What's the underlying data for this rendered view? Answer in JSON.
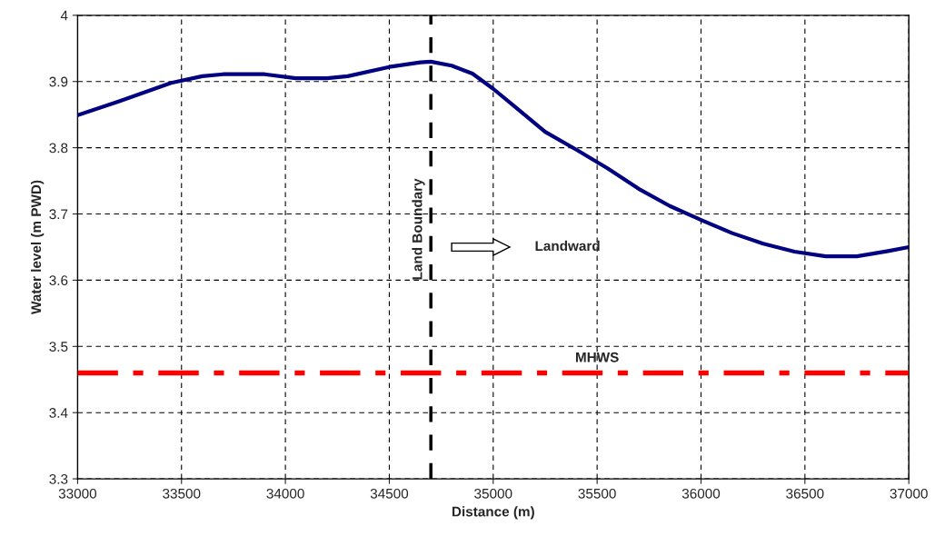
{
  "chart_data": {
    "type": "line",
    "xlabel": "Distance (m)",
    "ylabel": "Water level (m PWD)",
    "x": [
      33000,
      33200,
      33450,
      33600,
      33700,
      33900,
      34050,
      34200,
      34300,
      34500,
      34650,
      34700,
      34800,
      34900,
      35000,
      35100,
      35250,
      35400,
      35550,
      35700,
      35850,
      36000,
      36150,
      36300,
      36450,
      36600,
      36750,
      36900,
      37000
    ],
    "series": [
      {
        "color": "#000080",
        "values": [
          3.849,
          3.87,
          3.898,
          3.908,
          3.911,
          3.911,
          3.905,
          3.905,
          3.908,
          3.922,
          3.929,
          3.93,
          3.924,
          3.912,
          3.889,
          3.863,
          3.824,
          3.797,
          3.769,
          3.738,
          3.712,
          3.691,
          3.671,
          3.655,
          3.643,
          3.636,
          3.636,
          3.644,
          3.65
        ]
      }
    ],
    "xlim": [
      33000,
      37000
    ],
    "xticks": [
      33000,
      33500,
      34000,
      34500,
      35000,
      35500,
      36000,
      36500,
      37000
    ],
    "ylim": [
      3.3,
      4
    ],
    "yticks": [
      {
        "value": 3.3,
        "label": "3.3"
      },
      {
        "value": 3.4,
        "label": "3.4"
      },
      {
        "value": 3.5,
        "label": "3.5"
      },
      {
        "value": 3.6,
        "label": "3.6"
      },
      {
        "value": 3.7,
        "label": "3.7"
      },
      {
        "value": 3.8,
        "label": "3.8"
      },
      {
        "value": 3.9,
        "label": "3.9"
      },
      {
        "value": 4,
        "label": "4"
      }
    ],
    "grid": true,
    "marker": "none",
    "line_style": "solid",
    "ref_lines": [
      {
        "axis": "x",
        "value": 34700,
        "label": "Land Boundary",
        "color": "#000000",
        "line_style": "dashed"
      },
      {
        "axis": "y",
        "value": 3.46,
        "label": "MHWS",
        "color": "#ff0000",
        "line_style": "dashdot"
      }
    ],
    "annotations": [
      "Landward"
    ]
  }
}
